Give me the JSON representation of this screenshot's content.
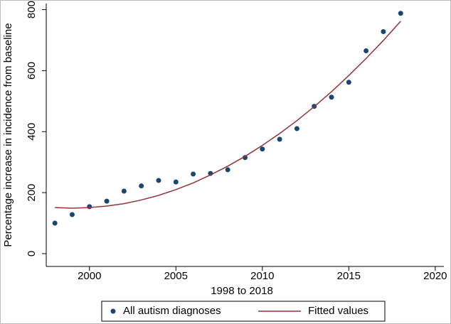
{
  "chart_data": {
    "type": "scatter_fit",
    "xlabel": "1998 to 2018",
    "ylabel": "Percentage increase in incidence from baseline",
    "x": [
      1998,
      1999,
      2000,
      2001,
      2002,
      2003,
      2004,
      2005,
      2006,
      2007,
      2008,
      2009,
      2010,
      2011,
      2012,
      2013,
      2014,
      2015,
      2016,
      2017,
      2018
    ],
    "series": [
      {
        "name": "All autism diagnoses",
        "color": "#1a476f",
        "kind": "points",
        "values": [
          100,
          128,
          154,
          172,
          205,
          222,
          240,
          235,
          261,
          263,
          275,
          315,
          343,
          375,
          410,
          483,
          513,
          562,
          665,
          728,
          788
        ]
      },
      {
        "name": "Fitted values",
        "color": "#90353b",
        "kind": "line",
        "values": [
          151,
          149,
          151,
          156,
          164,
          176,
          191,
          210,
          232,
          258,
          287,
          319,
          355,
          394,
          436,
          482,
          531,
          584,
          640,
          699,
          762
        ]
      }
    ],
    "xlim": [
      1997.5,
      2020.5
    ],
    "xticks": [
      2000,
      2005,
      2010,
      2015,
      2020
    ],
    "ylim": [
      -42,
      820
    ],
    "yticks": [
      0,
      200,
      400,
      600,
      800
    ]
  }
}
